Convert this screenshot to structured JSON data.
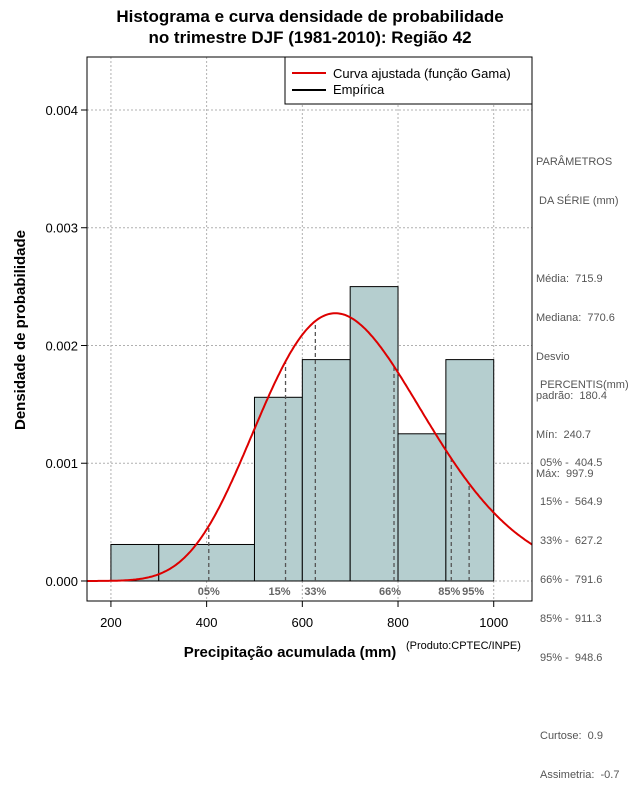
{
  "title": {
    "line1": "Histograma e curva densidade de probabilidade",
    "line2": "no trimestre DJF (1981-2010): Região 42"
  },
  "legend": {
    "fitted": "Curva ajustada (função Gama)",
    "empirical": "Empírica"
  },
  "produto": "(Produto:CPTEC/INPE)",
  "parameters": {
    "title_line1": "PARÂMETROS",
    "title_line2": " DA SÉRIE (mm)",
    "rows": [
      "Média:  715.9",
      "Mediana:  770.6",
      "Desvio",
      "padrão:  180.4",
      "Mín:  240.7",
      "Máx:  997.9"
    ]
  },
  "percentis_panel": {
    "title": "PERCENTIS(mm)",
    "rows": [
      "05% -  404.5",
      "15% -  564.9",
      "33% -  627.2",
      "66% -  791.6",
      "85% -  911.3",
      "95% -  948.6"
    ],
    "extra": [
      "Curtose:  0.9",
      "Assimetria:  -0.7"
    ]
  },
  "colors": {
    "bar_fill": "#b5cecf",
    "curve": "#dd0000",
    "grid": "#b0b0b0",
    "percentile_line": "#555555",
    "percentile_label": "#666666"
  },
  "chart_data": {
    "type": "bar",
    "title": "Histograma e curva densidade de probabilidade no trimestre DJF (1981-2010): Região 42",
    "xlabel": "Precipitação acumulada (mm)",
    "ylabel": "Densidade de probabilidade",
    "xlim": [
      150,
      1080
    ],
    "ylim": [
      -0.00017,
      0.00445
    ],
    "x_ticks": [
      200,
      400,
      600,
      800,
      1000
    ],
    "y_ticks": [
      0.0,
      0.001,
      0.002,
      0.003,
      0.004
    ],
    "y_tick_labels": [
      "0.000",
      "0.001",
      "0.002",
      "0.003",
      "0.004"
    ],
    "grid": true,
    "legend_position": "top-right",
    "bins": [
      {
        "x0": 200,
        "x1": 300,
        "density": 0.00031
      },
      {
        "x0": 300,
        "x1": 500,
        "density": 0.00031
      },
      {
        "x0": 500,
        "x1": 600,
        "density": 0.00156
      },
      {
        "x0": 600,
        "x1": 700,
        "density": 0.00188
      },
      {
        "x0": 700,
        "x1": 800,
        "density": 0.0025
      },
      {
        "x0": 800,
        "x1": 900,
        "density": 0.00125
      },
      {
        "x0": 900,
        "x1": 1000,
        "density": 0.00188
      }
    ],
    "gamma_fit": {
      "shape": 15.7,
      "scale": 45.5
    },
    "percentiles": [
      {
        "label": "05%",
        "value": 404.5
      },
      {
        "label": "15%",
        "value": 564.9
      },
      {
        "label": "33%",
        "value": 627.2
      },
      {
        "label": "66%",
        "value": 791.6
      },
      {
        "label": "85%",
        "value": 911.3
      },
      {
        "label": "95%",
        "value": 948.6
      }
    ]
  }
}
